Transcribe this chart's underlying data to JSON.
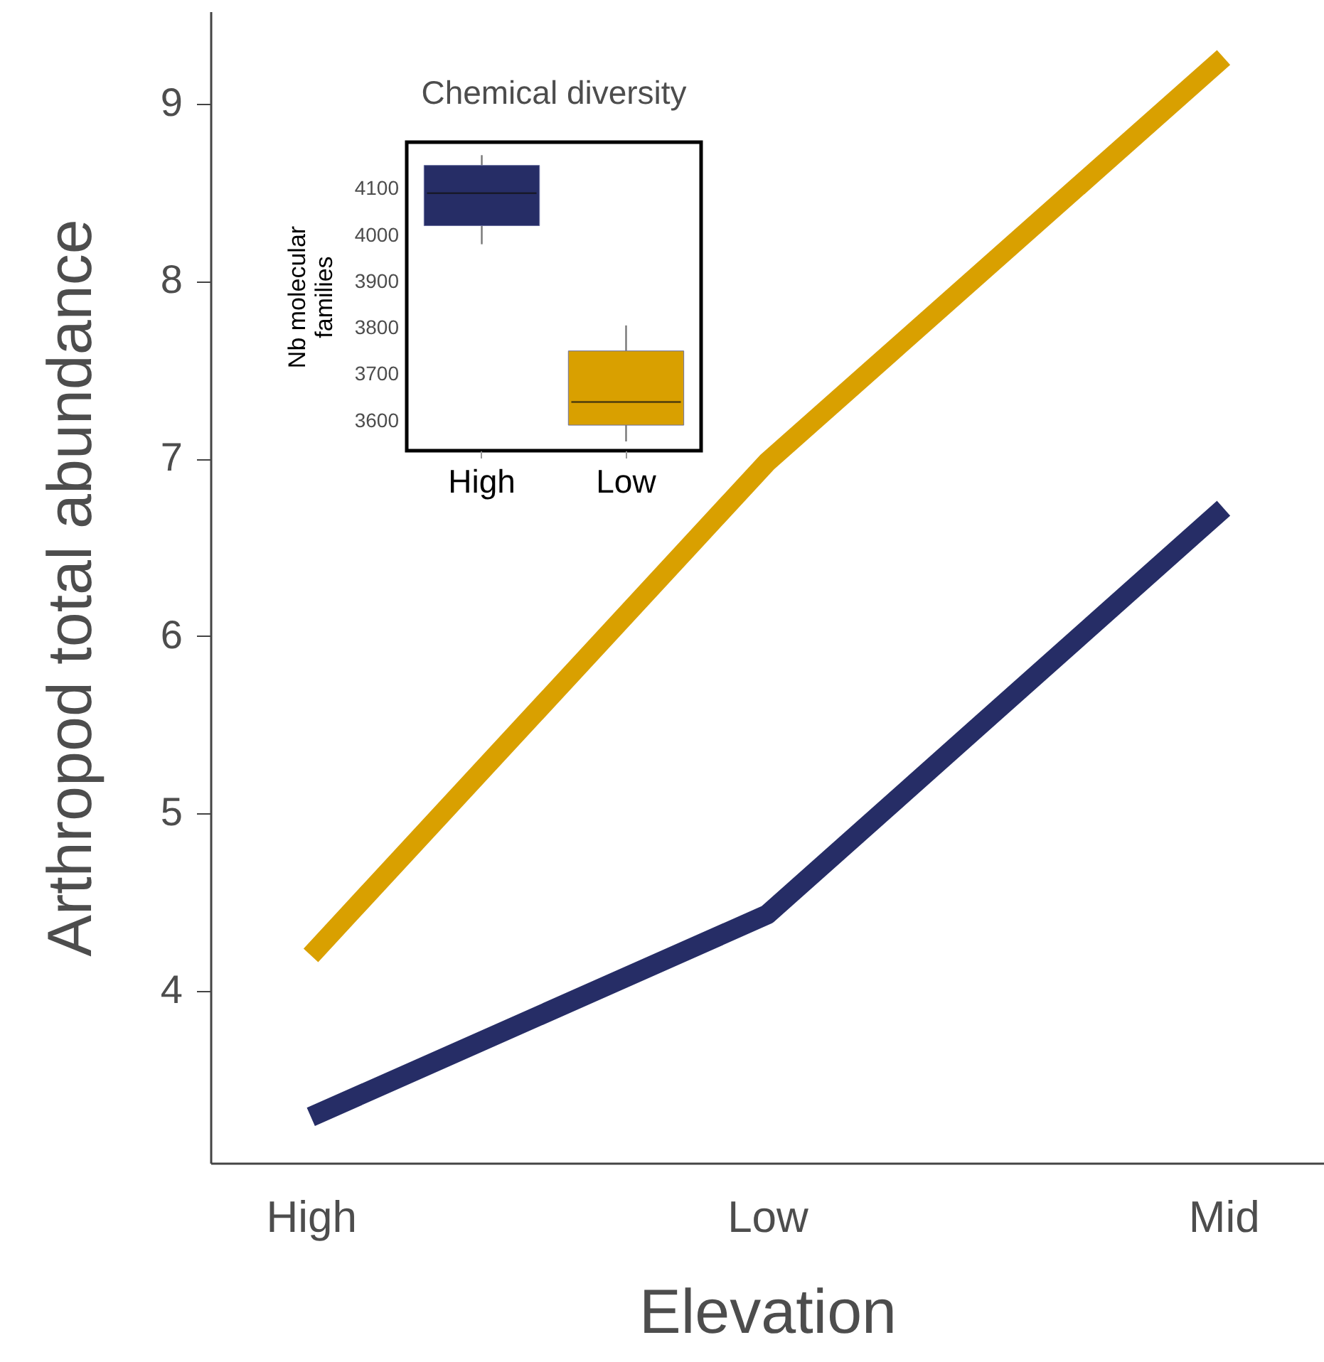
{
  "chart_data": [
    {
      "type": "line",
      "xlabel": "Elevation",
      "ylabel": "Arthropod total abundance",
      "categories": [
        "High",
        "Low",
        "Mid"
      ],
      "ylim": [
        3.03,
        9.52
      ],
      "yticks": [
        4,
        5,
        6,
        7,
        8,
        9
      ],
      "grid": false,
      "series": [
        {
          "color": "#d9a000",
          "values": [
            4.2,
            6.98,
            9.26
          ]
        },
        {
          "color": "#262d66",
          "values": [
            3.29,
            4.43,
            6.72
          ]
        }
      ]
    },
    {
      "type": "box",
      "title": "Chemical diversity",
      "ylabel": "Nb molecular families",
      "categories": [
        "High",
        "Low"
      ],
      "colors": [
        "#262d66",
        "#d9a000"
      ],
      "ylim": [
        3535,
        4200
      ],
      "yticks": [
        3600,
        3700,
        3800,
        3900,
        4000,
        4100
      ],
      "boxes": [
        {
          "low": 3980,
          "q1": 4020,
          "median": 4090,
          "q3": 4150,
          "high": 4172
        },
        {
          "low": 3555,
          "q1": 3590,
          "median": 3640,
          "q3": 3750,
          "high": 3805
        }
      ]
    }
  ]
}
